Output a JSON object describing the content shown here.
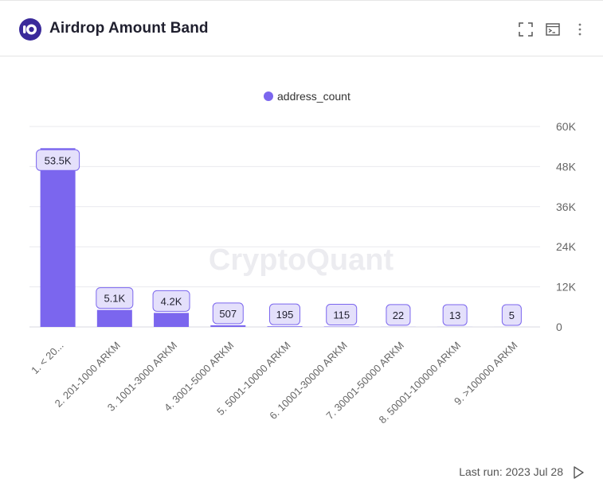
{
  "header": {
    "title": "Airdrop Amount Band",
    "icons": [
      "fullscreen-icon",
      "terminal-icon",
      "more-vert-icon"
    ]
  },
  "footer": {
    "last_run": "Last run: 2023 Jul 28"
  },
  "watermark": "CryptoQuant",
  "colors": {
    "bar": "#7b66ee",
    "label_bg": "#e4e0fb",
    "label_border": "#7b66ee",
    "grid": "#e9e9ee",
    "logo": "#3a2a9a"
  },
  "chart_data": {
    "type": "bar",
    "categories": [
      "1. < 20...",
      "2. 201-1000 ARKM",
      "3. 1001-3000 ARKM",
      "4. 3001-5000 ARKM",
      "5. 5001-10000 ARKM",
      "6. 10001-30000 ARKM",
      "7. 30001-50000 ARKM",
      "8. 50001-100000 ARKM",
      "9. >100000 ARKM"
    ],
    "series": [
      {
        "name": "address_count",
        "values": [
          53500,
          5100,
          4200,
          507,
          195,
          115,
          22,
          13,
          5
        ],
        "labels": [
          "53.5K",
          "5.1K",
          "4.2K",
          "507",
          "195",
          "115",
          "22",
          "13",
          "5"
        ]
      }
    ],
    "ylim": [
      0,
      60000
    ],
    "yticks": [
      0,
      12000,
      24000,
      36000,
      48000,
      60000
    ],
    "ytick_labels": [
      "0",
      "12K",
      "24K",
      "36K",
      "48K",
      "60K"
    ],
    "y_axis_side": "right",
    "grid": true,
    "legend": "top-center"
  }
}
